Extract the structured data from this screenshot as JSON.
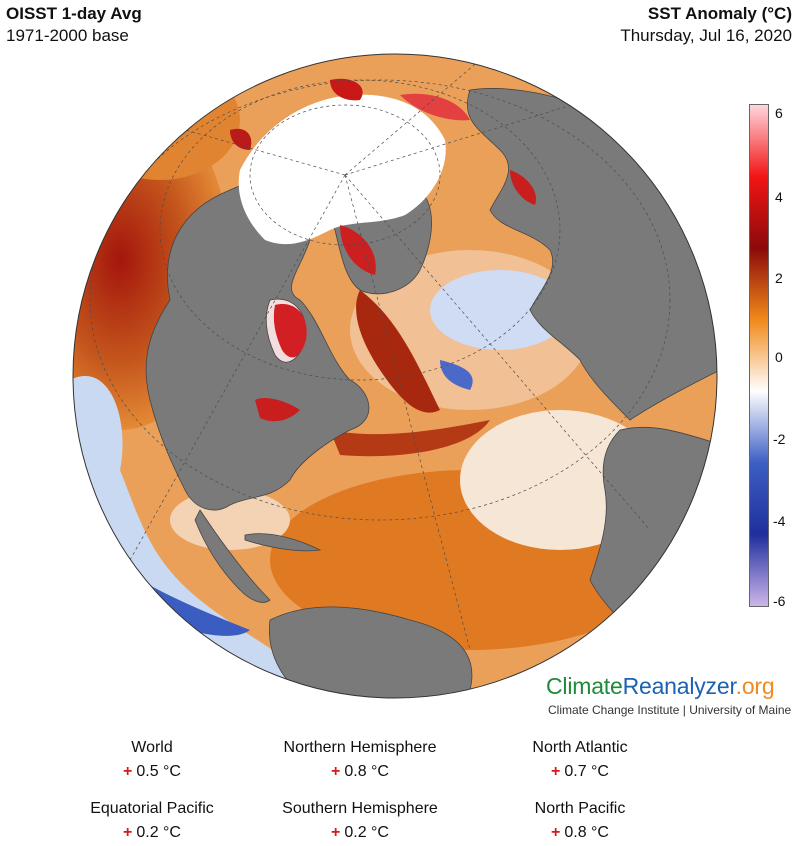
{
  "header": {
    "title": "OISST 1-day Avg",
    "base": "1971-2000 base",
    "variable": "SST Anomaly (°C)",
    "date": "Thursday, Jul 16, 2020"
  },
  "colorbar": {
    "ticks": [
      "6",
      "4",
      "2",
      "0",
      "-2",
      "-4",
      "-6"
    ],
    "range": [
      -6,
      6
    ],
    "stops": [
      "#ffd6dc",
      "#f21515",
      "#8b0a0a",
      "#f08a1a",
      "#ffffff",
      "#3d5fc4",
      "#1f2f9c",
      "#cdb5ea"
    ]
  },
  "colors": {
    "land": "#7a7a7a",
    "sea_ice": "#ffffff",
    "warm": "#e9852a",
    "hot": "#b33410",
    "cool": "#8fb3e8",
    "cold": "#2e52b8"
  },
  "brand": {
    "part1": "Climate",
    "part2": "Reanalyzer",
    "part3": ".org",
    "subtitle": "Climate Change Institute | University of Maine"
  },
  "stats": [
    {
      "region": "World",
      "sign": "+",
      "value": "0.5 °C"
    },
    {
      "region": "Northern Hemisphere",
      "sign": "+",
      "value": "0.8 °C"
    },
    {
      "region": "North Atlantic",
      "sign": "+",
      "value": "0.7 °C"
    },
    {
      "region": "Equatorial Pacific",
      "sign": "+",
      "value": "0.2 °C"
    },
    {
      "region": "Southern Hemisphere",
      "sign": "+",
      "value": "0.2 °C"
    },
    {
      "region": "North Pacific",
      "sign": "+",
      "value": "0.8 °C"
    }
  ]
}
